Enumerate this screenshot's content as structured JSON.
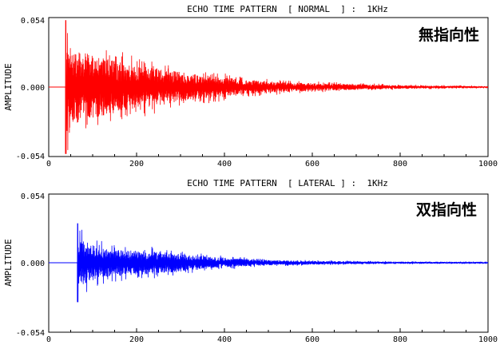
{
  "chart_data": [
    {
      "type": "line",
      "title": "ECHO TIME PATTERN  [ NORMAL  ] :  1KHz",
      "corner_label": "無指向性",
      "ylabel": "AMPLITUDE",
      "xlabel": "",
      "xlim": [
        0,
        1000
      ],
      "ylim": [
        -0.054,
        0.054
      ],
      "x_ticks": [
        "0",
        "200",
        "400",
        "600",
        "800",
        "1000"
      ],
      "y_ticks": [
        "0.054",
        "0.000",
        "-0.054"
      ],
      "color": "#ff0000",
      "series": [
        {
          "onset": 38,
          "peak_amplitude": 0.052,
          "envelope": [
            [
              38,
              0.052
            ],
            [
              60,
              0.04
            ],
            [
              100,
              0.036
            ],
            [
              140,
              0.03
            ],
            [
              200,
              0.024
            ],
            [
              260,
              0.02
            ],
            [
              320,
              0.015
            ],
            [
              400,
              0.011
            ],
            [
              480,
              0.007
            ],
            [
              560,
              0.005
            ],
            [
              640,
              0.004
            ],
            [
              720,
              0.003
            ],
            [
              800,
              0.002
            ],
            [
              900,
              0.0015
            ],
            [
              1000,
              0.001
            ]
          ]
        }
      ]
    },
    {
      "type": "line",
      "title": "ECHO TIME PATTERN  [ LATERAL ] :  1KHz",
      "corner_label": "双指向性",
      "ylabel": "AMPLITUDE",
      "xlabel": "",
      "xlim": [
        0,
        1000
      ],
      "ylim": [
        -0.054,
        0.054
      ],
      "x_ticks": [
        "0",
        "200",
        "400",
        "600",
        "800",
        "1000"
      ],
      "y_ticks": [
        "0.054",
        "0.000",
        "-0.054"
      ],
      "color": "#0000ff",
      "series": [
        {
          "onset": 65,
          "peak_amplitude": 0.031,
          "envelope": [
            [
              65,
              0.031
            ],
            [
              90,
              0.022
            ],
            [
              130,
              0.016
            ],
            [
              180,
              0.014
            ],
            [
              220,
              0.013
            ],
            [
              260,
              0.012
            ],
            [
              300,
              0.01
            ],
            [
              360,
              0.007
            ],
            [
              420,
              0.005
            ],
            [
              500,
              0.003
            ],
            [
              600,
              0.002
            ],
            [
              700,
              0.0015
            ],
            [
              800,
              0.0012
            ],
            [
              900,
              0.001
            ],
            [
              1000,
              0.0008
            ]
          ]
        }
      ]
    }
  ]
}
